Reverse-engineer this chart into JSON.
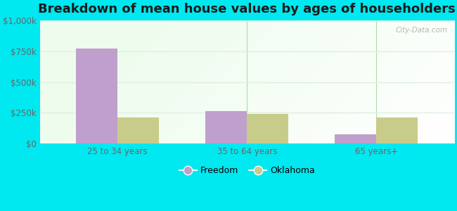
{
  "title": "Breakdown of mean house values by ages of householders",
  "categories": [
    "25 to 34 years",
    "35 to 64 years",
    "65 years+"
  ],
  "freedom_values": [
    775000,
    262000,
    75000
  ],
  "oklahoma_values": [
    210000,
    240000,
    215000
  ],
  "ylim": [
    0,
    1000000
  ],
  "yticks": [
    0,
    250000,
    500000,
    750000,
    1000000
  ],
  "ytick_labels": [
    "$0",
    "$250k",
    "$500k",
    "$750k",
    "$1,000k"
  ],
  "freedom_color": "#bf9fcc",
  "oklahoma_color": "#c8cc8a",
  "bg_outer": "#00e8f0",
  "legend_freedom": "Freedom",
  "legend_oklahoma": "Oklahoma",
  "bar_width": 0.32,
  "watermark": "City-Data.com",
  "title_fontsize": 13,
  "tick_fontsize": 8.5,
  "grid_color": "#e0efe0",
  "divider_color": "#aaddaa"
}
